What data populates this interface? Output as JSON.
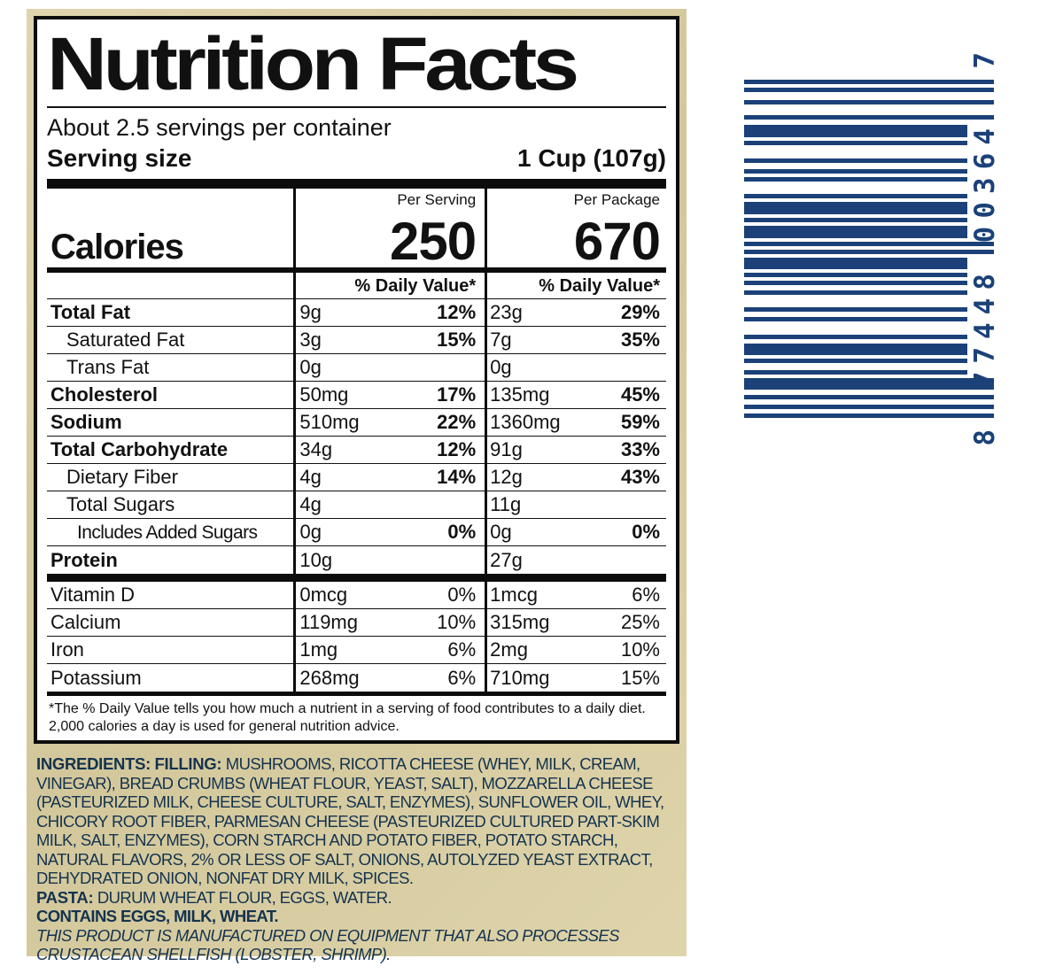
{
  "panel": {
    "title": "Nutrition Facts",
    "servings_per_container": "About 2.5 servings per container",
    "serving_size_label": "Serving size",
    "serving_size_value": "1 Cup (107g)",
    "col_headers": {
      "serving": "Per Serving",
      "package": "Per Package"
    },
    "calories_label": "Calories",
    "calories": {
      "serving": "250",
      "package": "670"
    },
    "daily_value_header": "% Daily Value*",
    "rows": [
      {
        "label": "Total Fat",
        "s_amt": "9g",
        "s_pct": "12%",
        "p_amt": "23g",
        "p_pct": "29%"
      },
      {
        "label": "Saturated Fat",
        "s_amt": "3g",
        "s_pct": "15%",
        "p_amt": "7g",
        "p_pct": "35%"
      },
      {
        "label": "Trans Fat",
        "s_amt": "0g",
        "s_pct": "",
        "p_amt": "0g",
        "p_pct": ""
      },
      {
        "label": "Cholesterol",
        "s_amt": "50mg",
        "s_pct": "17%",
        "p_amt": "135mg",
        "p_pct": "45%"
      },
      {
        "label": "Sodium",
        "s_amt": "510mg",
        "s_pct": "22%",
        "p_amt": "1360mg",
        "p_pct": "59%"
      },
      {
        "label": "Total Carbohydrate",
        "s_amt": "34g",
        "s_pct": "12%",
        "p_amt": "91g",
        "p_pct": "33%"
      },
      {
        "label": "Dietary Fiber",
        "s_amt": "4g",
        "s_pct": "14%",
        "p_amt": "12g",
        "p_pct": "43%"
      },
      {
        "label": "Total Sugars",
        "s_amt": "4g",
        "s_pct": "",
        "p_amt": "11g",
        "p_pct": ""
      },
      {
        "label": "Includes Added Sugars",
        "s_amt": "0g",
        "s_pct": "0%",
        "p_amt": "0g",
        "p_pct": "0%"
      },
      {
        "label": "Protein",
        "s_amt": "10g",
        "s_pct": "",
        "p_amt": "27g",
        "p_pct": ""
      }
    ],
    "vitamins": [
      {
        "label": "Vitamin D",
        "s_amt": "0mcg",
        "s_pct": "0%",
        "p_amt": "1mcg",
        "p_pct": "6%"
      },
      {
        "label": "Calcium",
        "s_amt": "119mg",
        "s_pct": "10%",
        "p_amt": "315mg",
        "p_pct": "25%"
      },
      {
        "label": "Iron",
        "s_amt": "1mg",
        "s_pct": "6%",
        "p_amt": "2mg",
        "p_pct": "10%"
      },
      {
        "label": "Potassium",
        "s_amt": "268mg",
        "s_pct": "6%",
        "p_amt": "710mg",
        "p_pct": "15%"
      }
    ],
    "footnote": "*The % Daily Value tells you how much a nutrient in a serving of food contributes to a daily diet. 2,000 calories a day is used for general nutrition advice."
  },
  "ingredients": {
    "lead": "INGREDIENTS:",
    "filling_label": "FILLING:",
    "filling_text": "MUSHROOMS, RICOTTA CHEESE (WHEY, MILK, CREAM, VINEGAR), BREAD CRUMBS (WHEAT FLOUR, YEAST, SALT), MOZZARELLA CHEESE (PASTEURIZED MILK, CHEESE CULTURE, SALT, ENZYMES), SUNFLOWER OIL, WHEY, CHICORY ROOT FIBER, PARMESAN CHEESE (PASTEURIZED CULTURED PART-SKIM MILK, SALT, ENZYMES), CORN STARCH AND POTATO FIBER, POTATO STARCH, NATURAL FLAVORS, 2% OR LESS OF SALT, ONIONS, AUTOLYZED YEAST EXTRACT, DEHYDRATED ONION, NONFAT DRY MILK, SPICES.",
    "pasta_label": "PASTA:",
    "pasta_text": "DURUM WHEAT FLOUR, EGGS, WATER.",
    "contains": "CONTAINS EGGS, MILK, WHEAT.",
    "allergen_note": "THIS PRODUCT IS MANUFACTURED ON EQUIPMENT THAT ALSO PROCESSES CRUSTACEAN SHELLFISH (LOBSTER, SHRIMP)."
  },
  "barcode": {
    "digit_top": "7",
    "digit_group_upper": "00364",
    "digit_group_lower": "77448",
    "digit_bottom": "8",
    "color": "#1b4178",
    "bars": [
      [
        5,
        4,
        1
      ],
      [
        5,
        9,
        1
      ],
      [
        5,
        12,
        1
      ],
      [
        5,
        6,
        1
      ],
      [
        14,
        4,
        0
      ],
      [
        5,
        15,
        0
      ],
      [
        5,
        7,
        0
      ],
      [
        5,
        4,
        0
      ],
      [
        5,
        14,
        0
      ],
      [
        5,
        4,
        0
      ],
      [
        14,
        4,
        0
      ],
      [
        5,
        4,
        0
      ],
      [
        14,
        4,
        0
      ],
      [
        5,
        4,
        1
      ],
      [
        5,
        4,
        1
      ],
      [
        13,
        4,
        0
      ],
      [
        5,
        4,
        0
      ],
      [
        5,
        6,
        0
      ],
      [
        5,
        14,
        0
      ],
      [
        5,
        6,
        0
      ],
      [
        5,
        15,
        0
      ],
      [
        5,
        5,
        0
      ],
      [
        13,
        4,
        0
      ],
      [
        5,
        8,
        0
      ],
      [
        5,
        4,
        0
      ],
      [
        13,
        6,
        1
      ],
      [
        5,
        6,
        1
      ],
      [
        5,
        5,
        1
      ],
      [
        5,
        0,
        1
      ]
    ]
  },
  "colors": {
    "package_tan": "#dbcfa1",
    "ink_black": "#111111",
    "navy_text": "#14334f",
    "barcode_navy": "#1b4178"
  }
}
